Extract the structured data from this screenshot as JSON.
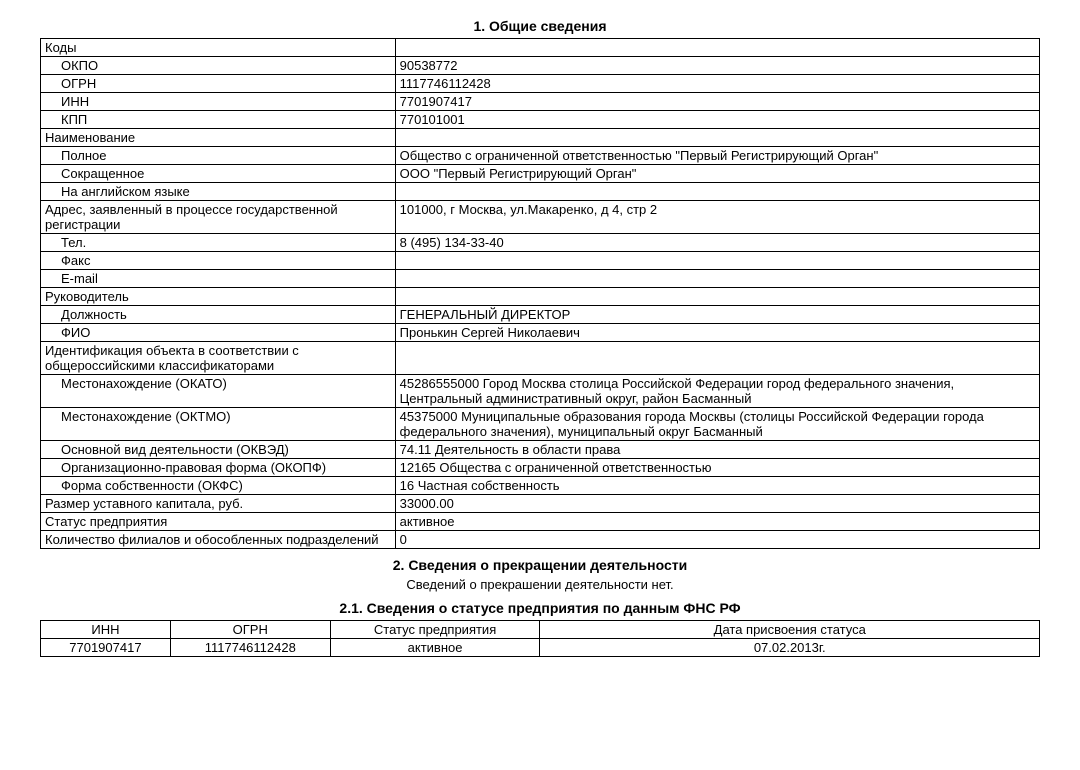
{
  "section1": {
    "title": "1. Общие сведения",
    "rows": {
      "kody": "Коды",
      "okpo_l": "ОКПО",
      "okpo_v": "90538772",
      "ogrn_l": "ОГРН",
      "ogrn_v": "1117746112428",
      "inn_l": "ИНН",
      "inn_v": "7701907417",
      "kpp_l": "КПП",
      "kpp_v": "770101001",
      "naim": "Наименование",
      "full_l": "Полное",
      "full_v": "Общество с ограниченной ответственностью \"Первый Регистрирующий Орган\"",
      "short_l": "Сокращенное",
      "short_v": "ООО \"Первый Регистрирующий Орган\"",
      "eng_l": "На английском языке",
      "eng_v": "",
      "addr_l": "Адрес, заявленный в процессе государственной регистрации",
      "addr_v": "101000, г Москва, ул.Макаренко, д 4, стр 2",
      "tel_l": "Тел.",
      "tel_v": " 8 (495) 134-33-40",
      "fax_l": "Факс",
      "fax_v": "",
      "email_l": "E-mail",
      "email_v": "",
      "ruk": "Руководитель",
      "pos_l": "Должность",
      "pos_v": "ГЕНЕРАЛЬНЫЙ ДИРЕКТОР",
      "fio_l": "ФИО",
      "fio_v": "Пронькин Сергей Николаевич",
      "ident_l": "Идентификация объекта в соответствии с общероссийскими классификаторами",
      "ident_v": "",
      "okato_l": "Местонахождение (ОКАТО)",
      "okato_v": "45286555000 Город Москва столица Российской Федерации город федерального значения, Центральный административный округ, район Басманный",
      "oktmo_l": "Местонахождение (ОКТМО)",
      "oktmo_v": "45375000 Муниципальные образования города Москвы (столицы Российской Федерации города федерального значения), муниципальный округ Басманный",
      "okved_l": "Основной вид деятельности (ОКВЭД)",
      "okved_v": "74.11 Деятельность в области права",
      "okopf_l": "Организационно-правовая форма (ОКОПФ)",
      "okopf_v": "12165 Общества с ограниченной ответственностью",
      "okfs_l": "Форма собственности (ОКФС)",
      "okfs_v": "16 Частная собственность",
      "cap_l": "Размер уставного капитала, руб.",
      "cap_v": "33000.00",
      "stat_l": "Статус предприятия",
      "stat_v": "активное",
      "fil_l": "Количество филиалов и обособленных подразделений",
      "fil_v": "0"
    }
  },
  "section2": {
    "title": "2. Сведения о прекращении деятельности",
    "subtitle": "Сведений о прекрашении деятельности нет."
  },
  "section2_1": {
    "title": "2.1. Сведения о статусе предприятия по данным ФНС РФ",
    "headers": {
      "inn": "ИНН",
      "ogrn": "ОГРН",
      "status": "Статус предприятия",
      "date": "Дата присвоения статуса"
    },
    "row": {
      "inn": "7701907417",
      "ogrn": "1117746112428",
      "status": "активное",
      "date": "07.02.2013г."
    },
    "col_widths": [
      "13%",
      "16%",
      "21%",
      "50%"
    ]
  }
}
